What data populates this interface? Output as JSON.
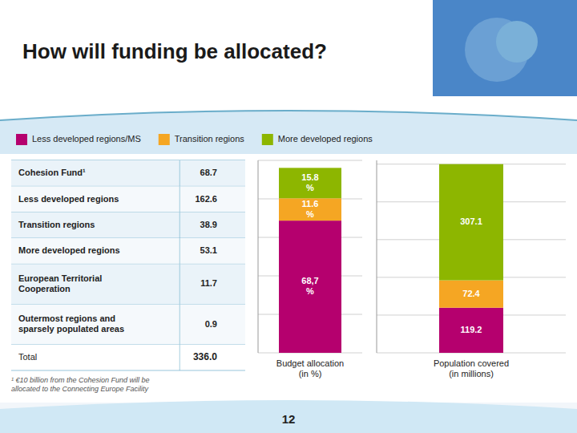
{
  "chart_data": [
    {
      "type": "table",
      "title": "How will funding be allocated?",
      "categories": [
        "Cohesion Fund¹",
        "Less developed regions",
        "Transition regions",
        "More developed regions",
        "European Territorial\nCooperation",
        "Outermost regions and\nsparsely populated areas",
        "Total"
      ],
      "values": [
        68.7,
        162.6,
        38.9,
        53.1,
        11.7,
        0.9,
        336.0
      ],
      "value_labels": [
        "68.7",
        "162.6",
        "38.9",
        "53.1",
        "11.7",
        "0.9",
        "336.0"
      ],
      "annotations": [
        "¹ €10 billion from the Cohesion Fund will be\nallocated to the Connecting Europe Facility",
        "12"
      ]
    },
    {
      "type": "bar",
      "stacked": true,
      "categories": [
        "Budget allocation\n(in %)"
      ],
      "series": [
        {
          "name": "Less developed regions/MS",
          "color": "#b5006e",
          "values": [
            68.7
          ],
          "value_labels": [
            "68,7\n%"
          ]
        },
        {
          "name": "Transition regions",
          "color": "#f5a623",
          "values": [
            11.6
          ],
          "value_labels": [
            "11.6\n%"
          ]
        },
        {
          "name": "More developed regions",
          "color": "#8db600",
          "values": [
            15.8
          ],
          "value_labels": [
            "15.8\n%"
          ]
        }
      ],
      "ylim": [
        0,
        100
      ],
      "yticks": [
        0,
        20,
        40,
        60,
        80,
        100
      ],
      "grid": true,
      "tick_labels": false,
      "data_labels": true,
      "legend": "top"
    },
    {
      "type": "bar",
      "stacked": true,
      "categories": [
        "Population covered\n(in millions)"
      ],
      "series": [
        {
          "name": "Less developed regions/MS",
          "color": "#b5006e",
          "values": [
            119.2
          ]
        },
        {
          "name": "Transition regions",
          "color": "#f5a623",
          "values": [
            72.4
          ]
        },
        {
          "name": "More developed regions",
          "color": "#8db600",
          "values": [
            307.1
          ]
        }
      ],
      "ylim": [
        0,
        508.674
      ],
      "yticks": [
        0,
        99.74,
        199.48,
        299.22,
        398.96,
        498.7
      ],
      "grid": true,
      "tick_labels": false,
      "data_labels": true
    }
  ]
}
